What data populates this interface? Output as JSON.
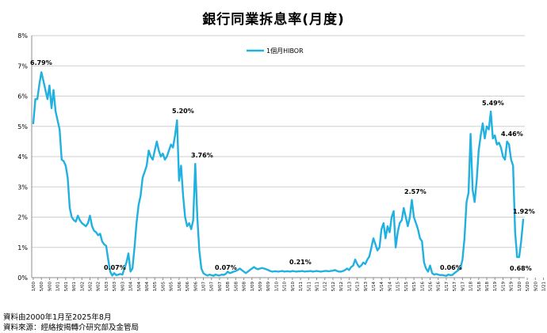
{
  "title": "銀行同業拆息率(月度)",
  "notes": [
    "資料由2000年1月至2025年8月",
    "資料來源：經絡按揭轉介研究部及金管局"
  ],
  "colors": {
    "series": "#21b1e0",
    "grid": "#cfcfcf",
    "axis": "#8c8c8c"
  },
  "chart_data": {
    "type": "line",
    "title": "銀行同業拆息率(月度)",
    "xlabel": "",
    "ylabel": "",
    "ylim": [
      0,
      8
    ],
    "yticks": [
      "0%",
      "1%",
      "2%",
      "3%",
      "4%",
      "5%",
      "6%",
      "7%",
      "8%"
    ],
    "grid": "horizontal",
    "legend_position": "top-center",
    "series": [
      {
        "name": "1個月HIBOR",
        "start": "2000-01",
        "end": "2025-08",
        "values": [
          5.1,
          5.9,
          5.9,
          6.4,
          6.79,
          6.5,
          6.2,
          5.9,
          6.35,
          5.6,
          6.2,
          5.5,
          5.2,
          4.9,
          3.9,
          3.85,
          3.7,
          3.3,
          2.3,
          2.0,
          1.9,
          1.85,
          2.05,
          1.9,
          1.8,
          1.75,
          1.7,
          1.8,
          2.05,
          1.7,
          1.55,
          1.5,
          1.4,
          1.45,
          1.2,
          1.1,
          1.05,
          0.6,
          0.2,
          0.07,
          0.15,
          0.08,
          0.1,
          0.12,
          0.1,
          0.3,
          0.5,
          0.8,
          0.2,
          0.3,
          1.0,
          1.8,
          2.4,
          2.7,
          3.3,
          3.5,
          3.7,
          4.2,
          4.0,
          3.9,
          4.2,
          4.5,
          4.2,
          4.0,
          4.1,
          3.9,
          4.0,
          4.2,
          4.4,
          4.3,
          4.7,
          5.2,
          3.2,
          3.7,
          2.7,
          2.0,
          1.7,
          1.8,
          1.6,
          1.9,
          3.76,
          2.0,
          0.9,
          0.3,
          0.15,
          0.1,
          0.07,
          0.1,
          0.08,
          0.06,
          0.1,
          0.08,
          0.07,
          0.1,
          0.09,
          0.12,
          0.2,
          0.15,
          0.17,
          0.2,
          0.22,
          0.25,
          0.3,
          0.25,
          0.2,
          0.15,
          0.2,
          0.25,
          0.3,
          0.35,
          0.3,
          0.28,
          0.3,
          0.32,
          0.3,
          0.28,
          0.25,
          0.22,
          0.2,
          0.21,
          0.21,
          0.2,
          0.21,
          0.22,
          0.2,
          0.21,
          0.21,
          0.2,
          0.22,
          0.21,
          0.2,
          0.21,
          0.21,
          0.22,
          0.2,
          0.21,
          0.21,
          0.22,
          0.2,
          0.21,
          0.22,
          0.21,
          0.2,
          0.21,
          0.22,
          0.22,
          0.21,
          0.22,
          0.23,
          0.25,
          0.22,
          0.2,
          0.2,
          0.22,
          0.25,
          0.3,
          0.25,
          0.35,
          0.4,
          0.6,
          0.45,
          0.35,
          0.4,
          0.5,
          0.45,
          0.6,
          0.7,
          1.0,
          1.3,
          1.1,
          0.9,
          1.0,
          1.6,
          1.8,
          1.3,
          1.7,
          1.5,
          2.0,
          2.2,
          1.0,
          1.5,
          1.8,
          1.9,
          2.3,
          2.0,
          1.7,
          2.0,
          2.57,
          2.0,
          1.8,
          1.6,
          1.3,
          1.2,
          0.5,
          0.3,
          0.2,
          0.4,
          0.15,
          0.1,
          0.12,
          0.1,
          0.08,
          0.09,
          0.07,
          0.06,
          0.1,
          0.08,
          0.09,
          0.15,
          0.2,
          0.25,
          0.3,
          0.6,
          1.3,
          2.5,
          2.8,
          4.75,
          2.9,
          2.5,
          3.2,
          4.2,
          4.7,
          5.1,
          4.6,
          5.0,
          4.9,
          5.49,
          4.6,
          4.7,
          4.4,
          4.46,
          4.3,
          4.0,
          3.9,
          4.5,
          4.4,
          3.9,
          3.7,
          1.5,
          0.68,
          0.68,
          1.2,
          1.92
        ]
      }
    ],
    "annotations": [
      {
        "text": "6.79%",
        "value": 6.79
      },
      {
        "text": "0.07%",
        "value": 0.07
      },
      {
        "text": "5.20%",
        "value": 5.2
      },
      {
        "text": "3.76%",
        "value": 3.76
      },
      {
        "text": "0.07%",
        "value": 0.07
      },
      {
        "text": "0.21%",
        "value": 0.21
      },
      {
        "text": "2.57%",
        "value": 2.57
      },
      {
        "text": "0.06%",
        "value": 0.06
      },
      {
        "text": "5.49%",
        "value": 5.49
      },
      {
        "text": "4.46%",
        "value": 4.46
      },
      {
        "text": "1.92%",
        "value": 1.92
      },
      {
        "text": "0.68%",
        "value": 0.68
      }
    ],
    "xticks": [
      "1/00",
      "5/00",
      "9/00",
      "1/01",
      "5/01",
      "9/01",
      "1/02",
      "5/02",
      "9/02",
      "1/03",
      "5/03",
      "9/03",
      "1/04",
      "5/04",
      "9/04",
      "1/05",
      "5/05",
      "9/05",
      "1/06",
      "5/06",
      "9/06",
      "1/07",
      "5/07",
      "9/07",
      "1/08",
      "5/08",
      "9/08",
      "1/09",
      "5/09",
      "9/09",
      "1/10",
      "5/10",
      "9/10",
      "1/11",
      "5/11",
      "9/11",
      "1/12",
      "5/12",
      "9/12",
      "1/13",
      "5/13",
      "9/13",
      "1/14",
      "5/14",
      "9/14",
      "1/15",
      "5/15",
      "9/15",
      "1/16",
      "5/16",
      "9/16",
      "1/17",
      "5/17",
      "9/17",
      "1/18",
      "5/18",
      "9/18",
      "1/19",
      "5/19",
      "9/19",
      "1/20",
      "5/20",
      "9/20",
      "1/21",
      "5/21",
      "9/21",
      "1/22",
      "5/22",
      "9/22",
      "1/23",
      "5/23",
      "9/23",
      "1/24",
      "5/24",
      "9/24",
      "1/25",
      "5/25"
    ]
  }
}
